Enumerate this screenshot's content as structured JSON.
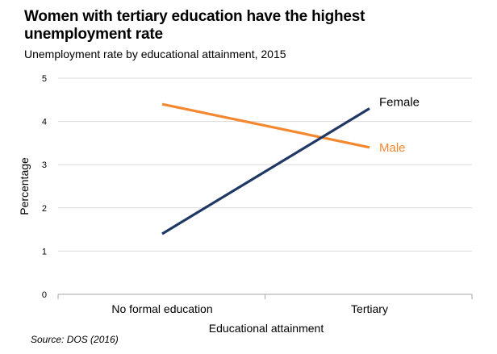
{
  "chart_data": {
    "type": "line",
    "title": "Women with tertiary education have the highest unemployment rate",
    "subtitle": "Unemployment rate by educational attainment, 2015",
    "categories": [
      "No formal education",
      "Tertiary"
    ],
    "series": [
      {
        "name": "Female",
        "values": [
          1.4,
          4.3
        ],
        "color": "#1f3864"
      },
      {
        "name": "Male",
        "values": [
          4.4,
          3.4
        ],
        "color": "#f4882f"
      }
    ],
    "xlabel": "Educational attainment",
    "ylabel": "Percentage",
    "ylim": [
      0,
      5
    ],
    "yticks": [
      0,
      1,
      2,
      3,
      4,
      5
    ],
    "grid": true,
    "legend": "inline labels at line ends",
    "source": "Source: DOS (2016)"
  }
}
